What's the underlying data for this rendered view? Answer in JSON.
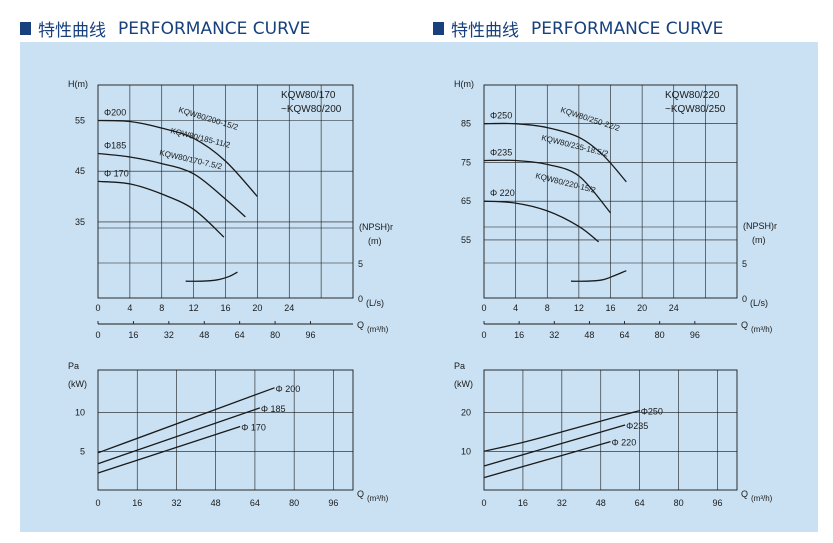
{
  "header": {
    "cn": "特性曲线",
    "en": "PERFORMANCE CURVE"
  },
  "chart_data": [
    {
      "type": "line",
      "title": "KQW80/170\n~KQW80/200",
      "title_lines": [
        "KQW80/170",
        "~KQW80/200"
      ],
      "ylabel": "H(m)",
      "ylim": [
        20,
        62
      ],
      "yticks": [
        55,
        45,
        35
      ],
      "npsh_label": [
        "(NPSH)r",
        "(m)"
      ],
      "npsh_ticks": [
        0,
        5
      ],
      "xlabel": "(L/s)",
      "xlim": [
        0,
        32
      ],
      "xticks": [
        0,
        4,
        8,
        12,
        16,
        20,
        24
      ],
      "q_label": "Q",
      "q_unit": "(m³/h)",
      "q_ticks": [
        0,
        16,
        32,
        48,
        64,
        80,
        96
      ],
      "series": [
        {
          "name": "KQW80/200-15/2",
          "diameter": "Φ200",
          "x": [
            0,
            4,
            8,
            12,
            16,
            20
          ],
          "y": [
            55,
            54.8,
            53.5,
            51.5,
            47,
            40
          ]
        },
        {
          "name": "KQW80/185-11/2",
          "diameter": "Φ185",
          "x": [
            0,
            4,
            8,
            12,
            16,
            18.5
          ],
          "y": [
            48.5,
            47.8,
            46.5,
            44.5,
            39.5,
            36
          ]
        },
        {
          "name": "KQW80/170-7.5/2",
          "diameter": "Φ 170",
          "x": [
            0,
            4,
            8,
            12,
            15.8
          ],
          "y": [
            43,
            42.5,
            40.5,
            37.5,
            32
          ]
        }
      ],
      "npsh": {
        "x": [
          11,
          13,
          15,
          16.5,
          17.5
        ],
        "y": [
          2.4,
          2.4,
          2.6,
          3.1,
          3.7
        ]
      }
    },
    {
      "type": "line",
      "title": "KQW80/220\n~KQW80/250",
      "title_lines": [
        "KQW80/220",
        "~KQW80/250"
      ],
      "ylabel": "H(m)",
      "ylim": [
        40,
        95
      ],
      "yticks": [
        85,
        75,
        65,
        55
      ],
      "npsh_label": [
        "(NPSH)r",
        "(m)"
      ],
      "npsh_ticks": [
        0,
        5
      ],
      "xlabel": "(L/s)",
      "xlim": [
        0,
        32
      ],
      "xticks": [
        0,
        4,
        8,
        12,
        16,
        20,
        24
      ],
      "q_label": "Q",
      "q_unit": "(m³/h)",
      "q_ticks": [
        0,
        16,
        32,
        48,
        64,
        80,
        96
      ],
      "series": [
        {
          "name": "KQW80/250-22/2",
          "diameter": "Φ250",
          "x": [
            0,
            4,
            8,
            12,
            15,
            18
          ],
          "y": [
            85,
            85,
            84,
            81.5,
            77,
            70
          ]
        },
        {
          "name": "KQW80/235-18.5/2",
          "diameter": "Φ235",
          "x": [
            0,
            4,
            8,
            12,
            16
          ],
          "y": [
            75.5,
            75.5,
            74.5,
            71.5,
            62
          ]
        },
        {
          "name": "KQW80/220-15/2",
          "diameter": "Φ 220",
          "x": [
            0,
            4,
            8,
            12,
            14.5
          ],
          "y": [
            65,
            64.5,
            62.5,
            58.5,
            54.5
          ]
        }
      ],
      "npsh": {
        "x": [
          11,
          13,
          15,
          16.5,
          18
        ],
        "y": [
          2.4,
          2.4,
          2.6,
          3.2,
          3.9
        ]
      }
    },
    {
      "type": "line",
      "ylabel": "Pa",
      "ylabel2": "(kW)",
      "ylim": [
        0,
        15.5
      ],
      "yticks": [
        10,
        5
      ],
      "q_label": "Q",
      "q_unit": "(m³/h)",
      "xlim": [
        0,
        104
      ],
      "xticks": [
        0,
        16,
        32,
        48,
        64,
        80,
        96
      ],
      "series": [
        {
          "name": "Φ 200",
          "x": [
            0,
            72
          ],
          "y": [
            4.8,
            13.2
          ]
        },
        {
          "name": "Φ 185",
          "x": [
            0,
            66
          ],
          "y": [
            3.4,
            10.6
          ]
        },
        {
          "name": "Φ 170",
          "x": [
            0,
            58
          ],
          "y": [
            2.2,
            8.2
          ]
        }
      ]
    },
    {
      "type": "line",
      "ylabel": "Pa",
      "ylabel2": "(kW)",
      "ylim": [
        0,
        31
      ],
      "yticks": [
        20,
        10
      ],
      "q_label": "Q",
      "q_unit": "(m³/h)",
      "xlim": [
        0,
        104
      ],
      "xticks": [
        0,
        16,
        32,
        48,
        64,
        80,
        96
      ],
      "series": [
        {
          "name": "Φ250",
          "x": [
            0,
            16,
            32,
            48,
            64
          ],
          "y": [
            10,
            12.3,
            15,
            17.8,
            20.5
          ]
        },
        {
          "name": "Φ235",
          "x": [
            0,
            58
          ],
          "y": [
            6.2,
            16.8
          ]
        },
        {
          "name": "Φ 220",
          "x": [
            0,
            52
          ],
          "y": [
            3.2,
            12.5
          ]
        }
      ]
    }
  ]
}
